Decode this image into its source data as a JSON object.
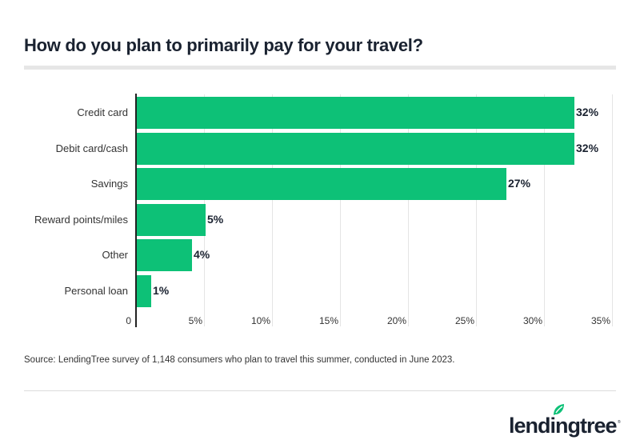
{
  "title": "How do you plan to primarily pay for your travel?",
  "source": "Source: LendingTree survey of 1,148 consumers who plan to travel this summer, conducted in June 2023.",
  "logo": {
    "text": "lendingtree",
    "reg": "®"
  },
  "colors": {
    "bar": "#0dc177",
    "text": "#1a2230",
    "leaf": "#0dc177"
  },
  "bars": [
    {
      "label": "Credit card",
      "value": 32,
      "value_label": "32%"
    },
    {
      "label": "Debit card/cash",
      "value": 32,
      "value_label": "32%"
    },
    {
      "label": "Savings",
      "value": 27,
      "value_label": "27%"
    },
    {
      "label": "Reward points/miles",
      "value": 5,
      "value_label": "5%"
    },
    {
      "label": "Other",
      "value": 4,
      "value_label": "4%"
    },
    {
      "label": "Personal loan",
      "value": 1,
      "value_label": "1%"
    }
  ],
  "ticks": [
    "0",
    "5%",
    "10%",
    "15%",
    "20%",
    "25%",
    "30%",
    "35%"
  ],
  "chart_data": {
    "type": "bar",
    "orientation": "horizontal",
    "title": "How do you plan to primarily pay for your travel?",
    "categories": [
      "Credit card",
      "Debit card/cash",
      "Savings",
      "Reward points/miles",
      "Other",
      "Personal loan"
    ],
    "values": [
      32,
      32,
      27,
      5,
      4,
      1
    ],
    "value_labels": [
      "32%",
      "32%",
      "27%",
      "5%",
      "4%",
      "1%"
    ],
    "xlabel": "",
    "ylabel": "",
    "xlim": [
      0,
      35
    ],
    "xticks": [
      "0",
      "5%",
      "10%",
      "15%",
      "20%",
      "25%",
      "30%",
      "35%"
    ],
    "grid": true,
    "legend": null,
    "source": "Source: LendingTree survey of 1,148 consumers who plan to travel this summer, conducted in June 2023."
  }
}
